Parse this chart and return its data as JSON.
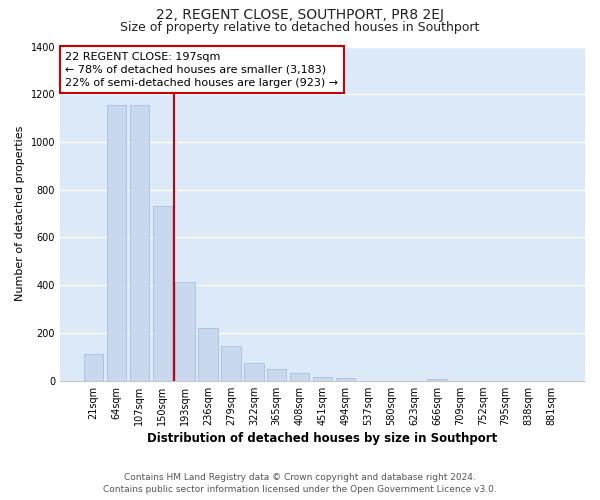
{
  "title": "22, REGENT CLOSE, SOUTHPORT, PR8 2EJ",
  "subtitle": "Size of property relative to detached houses in Southport",
  "bar_labels": [
    "21sqm",
    "64sqm",
    "107sqm",
    "150sqm",
    "193sqm",
    "236sqm",
    "279sqm",
    "322sqm",
    "365sqm",
    "408sqm",
    "451sqm",
    "494sqm",
    "537sqm",
    "580sqm",
    "623sqm",
    "666sqm",
    "709sqm",
    "752sqm",
    "795sqm",
    "838sqm",
    "881sqm"
  ],
  "bar_values": [
    110,
    1155,
    1155,
    730,
    415,
    220,
    145,
    75,
    50,
    32,
    15,
    13,
    0,
    0,
    0,
    8,
    0,
    0,
    0,
    0,
    0
  ],
  "bar_color": "#c8d9ef",
  "bar_edge_color": "#a8c0de",
  "vline_color": "#cc0000",
  "annotation_title": "22 REGENT CLOSE: 197sqm",
  "annotation_line1": "← 78% of detached houses are smaller (3,183)",
  "annotation_line2": "22% of semi-detached houses are larger (923) →",
  "annotation_box_color": "#ffffff",
  "annotation_box_edge": "#cc0000",
  "xlabel": "Distribution of detached houses by size in Southport",
  "ylabel": "Number of detached properties",
  "ylim": [
    0,
    1400
  ],
  "yticks": [
    0,
    200,
    400,
    600,
    800,
    1000,
    1200,
    1400
  ],
  "footer1": "Contains HM Land Registry data © Crown copyright and database right 2024.",
  "footer2": "Contains public sector information licensed under the Open Government Licence v3.0.",
  "plot_bg_color": "#dce9f8",
  "fig_bg_color": "#ffffff",
  "grid_color": "#ffffff",
  "title_fontsize": 10,
  "subtitle_fontsize": 9,
  "axis_label_fontsize": 8,
  "tick_fontsize": 7,
  "annotation_fontsize": 8,
  "footer_fontsize": 6.5
}
